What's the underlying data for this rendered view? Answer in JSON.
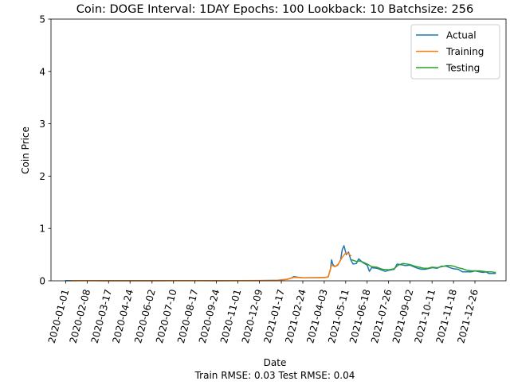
{
  "chart_data": {
    "type": "line",
    "title": "Coin: DOGE Interval: 1DAY Epochs: 100 Lookback: 10 Batchsize: 256",
    "xlabel": "Date",
    "ylabel": "Coin Price",
    "footer": "Train RMSE: 0.03 Test RMSE: 0.04",
    "xlim": [
      "2019-12-06",
      "2022-02-19"
    ],
    "ylim": [
      0,
      5
    ],
    "yticks": [
      0,
      1,
      2,
      3,
      4,
      5
    ],
    "xticks": [
      "2020-01-01",
      "2020-02-08",
      "2020-03-17",
      "2020-04-24",
      "2020-06-02",
      "2020-07-10",
      "2020-08-17",
      "2020-09-24",
      "2020-11-01",
      "2020-12-09",
      "2021-01-17",
      "2021-02-24",
      "2021-04-03",
      "2021-05-11",
      "2021-06-18",
      "2021-07-26",
      "2021-09-02",
      "2021-10-11",
      "2021-11-18",
      "2021-12-26"
    ],
    "legend": {
      "position": "top-right"
    },
    "grid": false,
    "series": [
      {
        "name": "Actual",
        "color": "#1f77b4",
        "x": [
          "2020-01-01",
          "2020-02-08",
          "2020-03-17",
          "2020-04-24",
          "2020-06-02",
          "2020-07-10",
          "2020-08-17",
          "2020-09-24",
          "2020-11-01",
          "2020-12-09",
          "2021-01-10",
          "2021-01-28",
          "2021-02-05",
          "2021-02-08",
          "2021-02-14",
          "2021-02-24",
          "2021-03-10",
          "2021-03-25",
          "2021-04-03",
          "2021-04-10",
          "2021-04-14",
          "2021-04-16",
          "2021-04-18",
          "2021-04-22",
          "2021-04-27",
          "2021-05-02",
          "2021-05-05",
          "2021-05-08",
          "2021-05-12",
          "2021-05-16",
          "2021-05-20",
          "2021-05-24",
          "2021-05-30",
          "2021-06-03",
          "2021-06-10",
          "2021-06-18",
          "2021-06-22",
          "2021-06-26",
          "2021-07-05",
          "2021-07-15",
          "2021-07-20",
          "2021-07-26",
          "2021-08-05",
          "2021-08-10",
          "2021-08-16",
          "2021-08-25",
          "2021-09-02",
          "2021-09-08",
          "2021-09-15",
          "2021-09-22",
          "2021-09-29",
          "2021-10-11",
          "2021-10-20",
          "2021-10-28",
          "2021-11-05",
          "2021-11-12",
          "2021-11-18",
          "2021-11-26",
          "2021-12-04",
          "2021-12-12",
          "2021-12-20",
          "2021-12-26",
          "2022-01-03",
          "2022-01-10",
          "2022-01-14",
          "2022-01-20",
          "2022-01-26",
          "2022-01-31"
        ],
        "y": [
          0.002,
          0.003,
          0.002,
          0.002,
          0.0025,
          0.003,
          0.0035,
          0.0025,
          0.003,
          0.0045,
          0.009,
          0.03,
          0.06,
          0.08,
          0.07,
          0.057,
          0.058,
          0.06,
          0.06,
          0.075,
          0.22,
          0.4,
          0.32,
          0.27,
          0.3,
          0.4,
          0.6,
          0.67,
          0.5,
          0.55,
          0.4,
          0.32,
          0.33,
          0.42,
          0.35,
          0.3,
          0.18,
          0.25,
          0.24,
          0.2,
          0.18,
          0.2,
          0.22,
          0.32,
          0.31,
          0.29,
          0.3,
          0.27,
          0.24,
          0.22,
          0.22,
          0.25,
          0.24,
          0.28,
          0.28,
          0.25,
          0.23,
          0.22,
          0.17,
          0.17,
          0.17,
          0.19,
          0.17,
          0.16,
          0.17,
          0.14,
          0.14,
          0.14
        ]
      },
      {
        "name": "Training",
        "color": "#ff7f0e",
        "x": [
          "2020-01-11",
          "2020-03-17",
          "2020-06-02",
          "2020-08-17",
          "2020-11-01",
          "2021-01-10",
          "2021-01-28",
          "2021-02-08",
          "2021-02-24",
          "2021-03-25",
          "2021-04-10",
          "2021-04-16",
          "2021-04-22",
          "2021-04-28",
          "2021-05-05",
          "2021-05-10",
          "2021-05-15",
          "2021-05-20"
        ],
        "y": [
          0.003,
          0.003,
          0.003,
          0.003,
          0.003,
          0.008,
          0.03,
          0.065,
          0.058,
          0.06,
          0.07,
          0.3,
          0.27,
          0.32,
          0.45,
          0.52,
          0.53,
          0.48
        ]
      },
      {
        "name": "Testing",
        "color": "#2ca02c",
        "x": [
          "2021-05-22",
          "2021-05-30",
          "2021-06-05",
          "2021-06-12",
          "2021-06-18",
          "2021-06-26",
          "2021-07-05",
          "2021-07-15",
          "2021-07-26",
          "2021-08-05",
          "2021-08-12",
          "2021-08-20",
          "2021-08-28",
          "2021-09-02",
          "2021-09-10",
          "2021-09-18",
          "2021-09-26",
          "2021-10-04",
          "2021-10-11",
          "2021-10-20",
          "2021-10-28",
          "2021-11-05",
          "2021-11-12",
          "2021-11-18",
          "2021-11-26",
          "2021-12-04",
          "2021-12-12",
          "2021-12-20",
          "2021-12-26",
          "2022-01-03",
          "2022-01-10",
          "2022-01-17",
          "2022-01-25",
          "2022-01-31"
        ],
        "y": [
          0.4,
          0.37,
          0.38,
          0.35,
          0.32,
          0.27,
          0.26,
          0.22,
          0.21,
          0.23,
          0.3,
          0.33,
          0.32,
          0.31,
          0.28,
          0.26,
          0.24,
          0.24,
          0.26,
          0.25,
          0.27,
          0.29,
          0.29,
          0.28,
          0.25,
          0.23,
          0.2,
          0.19,
          0.19,
          0.19,
          0.18,
          0.17,
          0.17,
          0.16
        ]
      }
    ]
  }
}
